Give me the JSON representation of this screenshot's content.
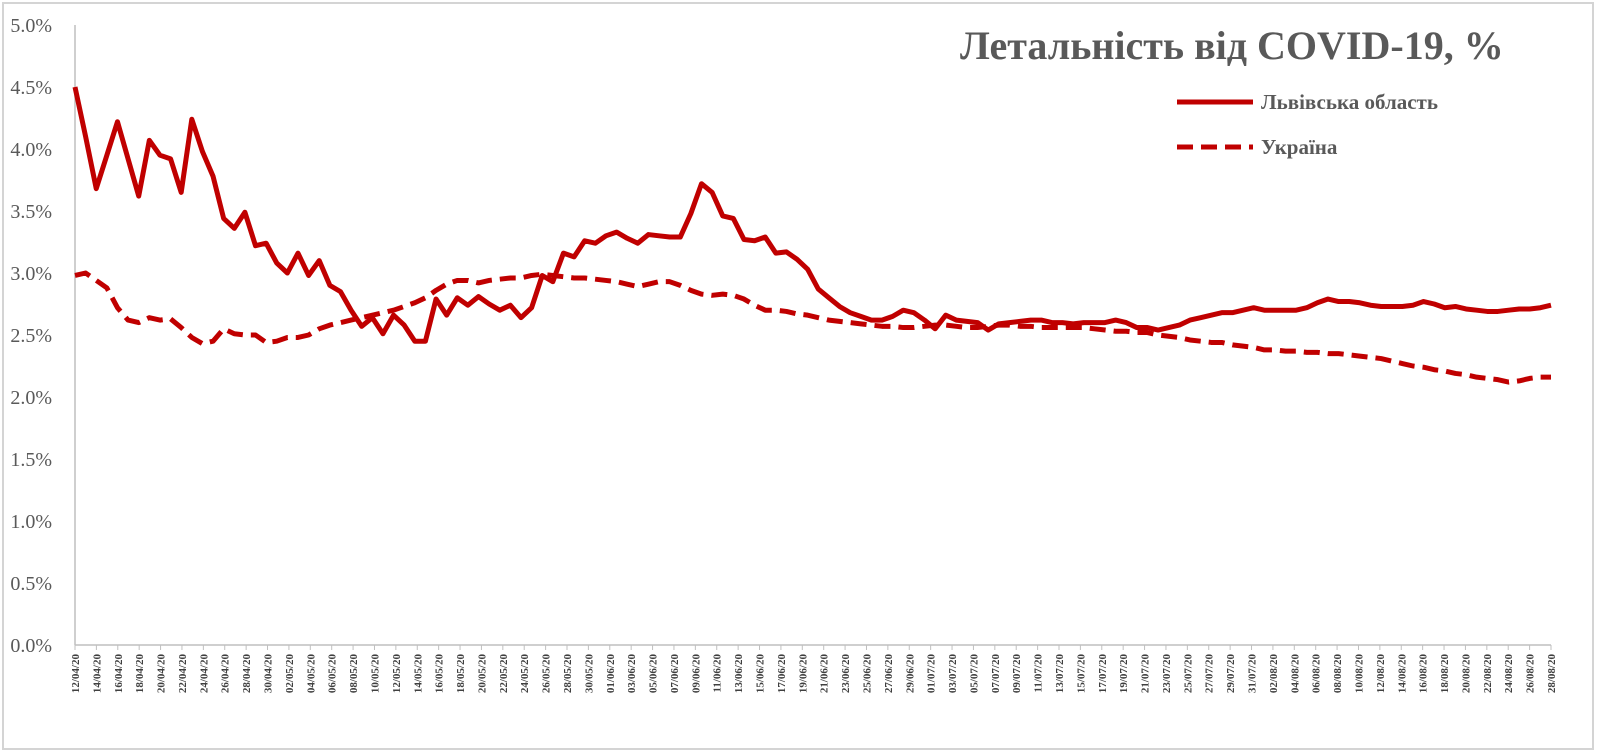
{
  "chart_data": {
    "type": "line",
    "title": "Летальність від COVID-19, %",
    "xlabel": "",
    "ylabel": "",
    "ylim": [
      0,
      5
    ],
    "yticks": [
      "0.0%",
      "0.5%",
      "1.0%",
      "1.5%",
      "2.0%",
      "2.5%",
      "3.0%",
      "3.5%",
      "4.0%",
      "4.5%",
      "5.0%"
    ],
    "grid": false,
    "legend_position": "top-right",
    "x_tick_labels": [
      "12/04/20",
      "14/04/20",
      "16/04/20",
      "18/04/20",
      "20/04/20",
      "22/04/20",
      "24/04/20",
      "26/04/20",
      "28/04/20",
      "30/04/20",
      "02/05/20",
      "04/05/20",
      "06/05/20",
      "08/05/20",
      "10/05/20",
      "12/05/20",
      "14/05/20",
      "16/05/20",
      "18/05/20",
      "20/05/20",
      "22/05/20",
      "24/05/20",
      "26/05/20",
      "28/05/20",
      "30/05/20",
      "01/06/20",
      "03/06/20",
      "05/06/20",
      "07/06/20",
      "09/06/20",
      "11/06/20",
      "13/06/20",
      "15/06/20",
      "17/06/20",
      "19/06/20",
      "21/06/20",
      "23/06/20",
      "25/06/20",
      "27/06/20",
      "29/06/20",
      "01/07/20",
      "03/07/20",
      "05/07/20",
      "07/07/20",
      "09/07/20",
      "11/07/20",
      "13/07/20",
      "15/07/20",
      "17/07/20",
      "19/07/20",
      "21/07/20",
      "23/07/20",
      "25/07/20",
      "27/07/20",
      "29/07/20",
      "31/07/20",
      "02/08/20",
      "04/08/20",
      "06/08/20",
      "08/08/20",
      "10/08/20",
      "12/08/20",
      "14/08/20",
      "16/08/20",
      "18/08/20",
      "20/08/20",
      "22/08/20",
      "24/08/20",
      "26/08/20",
      "28/08/20"
    ],
    "x_start": "12/04/20",
    "x_step_days": 1,
    "series": [
      {
        "name": "Львівська область",
        "style": "solid",
        "color": "#c00000",
        "values": [
          4.5,
          4.1,
          3.68,
          3.95,
          4.22,
          3.92,
          3.62,
          4.07,
          3.95,
          3.92,
          3.65,
          4.24,
          3.98,
          3.78,
          3.44,
          3.36,
          3.49,
          3.22,
          3.24,
          3.08,
          3.0,
          3.16,
          2.98,
          3.1,
          2.9,
          2.85,
          2.7,
          2.57,
          2.64,
          2.51,
          2.66,
          2.58,
          2.45,
          2.45,
          2.79,
          2.66,
          2.8,
          2.74,
          2.81,
          2.75,
          2.7,
          2.74,
          2.64,
          2.72,
          2.98,
          2.93,
          3.16,
          3.13,
          3.26,
          3.24,
          3.3,
          3.33,
          3.28,
          3.24,
          3.31,
          3.3,
          3.29,
          3.29,
          3.48,
          3.72,
          3.65,
          3.46,
          3.44,
          3.27,
          3.26,
          3.29,
          3.16,
          3.17,
          3.11,
          3.03,
          2.87,
          2.8,
          2.73,
          2.68,
          2.65,
          2.62,
          2.62,
          2.65,
          2.7,
          2.68,
          2.62,
          2.55,
          2.66,
          2.62,
          2.61,
          2.6,
          2.54,
          2.59,
          2.6,
          2.61,
          2.62,
          2.62,
          2.6,
          2.6,
          2.59,
          2.6,
          2.6,
          2.6,
          2.62,
          2.6,
          2.56,
          2.56,
          2.54,
          2.56,
          2.58,
          2.62,
          2.64,
          2.66,
          2.68,
          2.68,
          2.7,
          2.72,
          2.7,
          2.7,
          2.7,
          2.7,
          2.72,
          2.76,
          2.79,
          2.77,
          2.77,
          2.76,
          2.74,
          2.73,
          2.73,
          2.73,
          2.74,
          2.77,
          2.75,
          2.72,
          2.73,
          2.71,
          2.7,
          2.69,
          2.69,
          2.7,
          2.71,
          2.71,
          2.72,
          2.74
        ]
      },
      {
        "name": "Україна",
        "style": "dashed",
        "color": "#c00000",
        "values": [
          2.98,
          3.0,
          2.94,
          2.88,
          2.72,
          2.62,
          2.6,
          2.64,
          2.62,
          2.63,
          2.56,
          2.48,
          2.43,
          2.45,
          2.55,
          2.51,
          2.5,
          2.5,
          2.44,
          2.45,
          2.48,
          2.48,
          2.5,
          2.55,
          2.58,
          2.6,
          2.62,
          2.64,
          2.66,
          2.68,
          2.7,
          2.73,
          2.76,
          2.8,
          2.86,
          2.91,
          2.94,
          2.94,
          2.92,
          2.94,
          2.95,
          2.96,
          2.96,
          2.98,
          2.99,
          2.98,
          2.97,
          2.96,
          2.96,
          2.95,
          2.94,
          2.93,
          2.91,
          2.89,
          2.91,
          2.93,
          2.93,
          2.9,
          2.86,
          2.83,
          2.82,
          2.83,
          2.82,
          2.79,
          2.74,
          2.7,
          2.7,
          2.69,
          2.67,
          2.66,
          2.64,
          2.62,
          2.61,
          2.6,
          2.59,
          2.58,
          2.57,
          2.57,
          2.56,
          2.56,
          2.57,
          2.58,
          2.58,
          2.57,
          2.56,
          2.56,
          2.57,
          2.58,
          2.58,
          2.57,
          2.57,
          2.56,
          2.56,
          2.56,
          2.56,
          2.56,
          2.55,
          2.54,
          2.53,
          2.53,
          2.52,
          2.52,
          2.5,
          2.49,
          2.48,
          2.46,
          2.45,
          2.44,
          2.44,
          2.42,
          2.41,
          2.4,
          2.38,
          2.38,
          2.37,
          2.37,
          2.36,
          2.36,
          2.35,
          2.35,
          2.34,
          2.33,
          2.32,
          2.31,
          2.29,
          2.27,
          2.25,
          2.24,
          2.22,
          2.21,
          2.19,
          2.18,
          2.16,
          2.15,
          2.14,
          2.12,
          2.13,
          2.15,
          2.16,
          2.16
        ]
      }
    ]
  }
}
